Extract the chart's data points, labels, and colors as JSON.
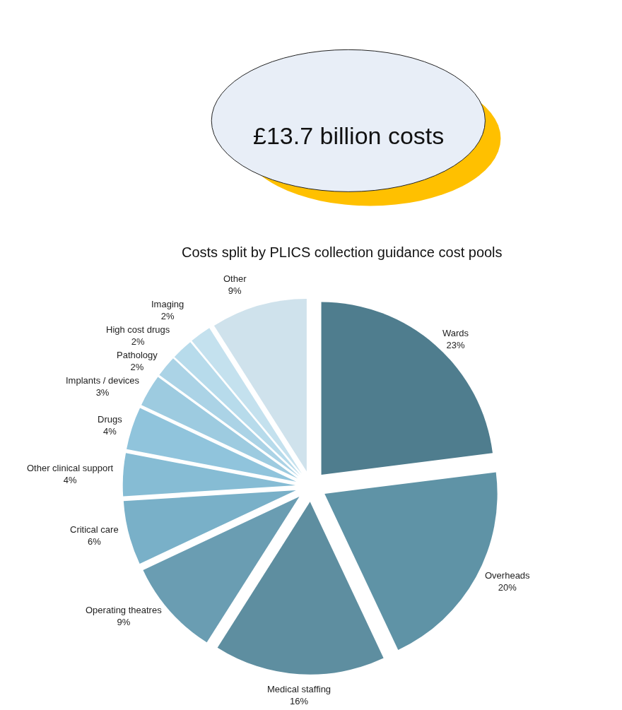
{
  "chart_data": {
    "type": "pie",
    "title": "£13.7 billion costs",
    "subtitle": "Costs split by PLICS collection guidance cost pools",
    "categories": [
      "Wards",
      "Overheads",
      "Medical staffing",
      "Operating theatres",
      "Critical care",
      "Other clinical support",
      "Drugs",
      "Implants / devices",
      "Pathology",
      "High cost drugs",
      "Imaging",
      "Other"
    ],
    "values": [
      23,
      20,
      16,
      9,
      6,
      4,
      4,
      3,
      2,
      2,
      2,
      9
    ],
    "value_labels": [
      "23%",
      "20%",
      "16%",
      "9%",
      "6%",
      "4%",
      "4%",
      "3%",
      "2%",
      "2%",
      "2%",
      "9%"
    ],
    "colors": [
      "#4f7d8e",
      "#5f93a6",
      "#5e8ea0",
      "#6a9db2",
      "#79b0c8",
      "#86bcd4",
      "#90c4dc",
      "#9dcbe0",
      "#abd3e6",
      "#b7dbeb",
      "#c4e1ee",
      "#cfe2ec"
    ],
    "legend": false
  }
}
